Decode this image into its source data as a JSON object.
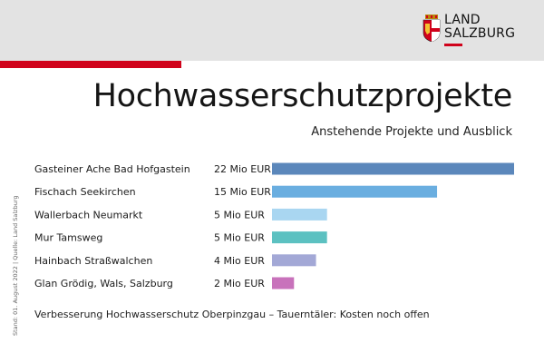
{
  "brand": {
    "line1": "LAND",
    "line2": "SALZBURG",
    "accent_color": "#d0021b",
    "crest_icon": "salzburg-coat-of-arms-icon"
  },
  "page": {
    "title": "Hochwasserschutzprojekte",
    "subtitle": "Anstehende Projekte und Ausblick",
    "footnote": "Verbesserung Hochwasserschutz Oberpinzgau – Tauerntäler: Kosten noch offen",
    "sidenote": "Stand: 01. August 2022 | Quelle: Land Salzburg"
  },
  "chart_data": {
    "type": "bar",
    "orientation": "horizontal",
    "unit": "Mio EUR",
    "categories": [
      "Gasteiner Ache Bad Hofgastein",
      "Fischach Seekirchen",
      "Wallerbach Neumarkt",
      "Mur Tamsweg",
      "Hainbach Straßwalchen",
      "Glan Grödig, Wals, Salzburg"
    ],
    "values": [
      22,
      15,
      5,
      5,
      4,
      2
    ],
    "value_labels": [
      "22 Mio EUR",
      "15 Mio EUR",
      "5 Mio EUR",
      "5 Mio EUR",
      "4 Mio EUR",
      "2 Mio EUR"
    ],
    "colors": [
      "#5b87bb",
      "#6aaee0",
      "#a9d6f1",
      "#5cc1c1",
      "#a3a8d6",
      "#c872bb"
    ],
    "xlim": [
      0,
      22
    ],
    "grid": false
  }
}
